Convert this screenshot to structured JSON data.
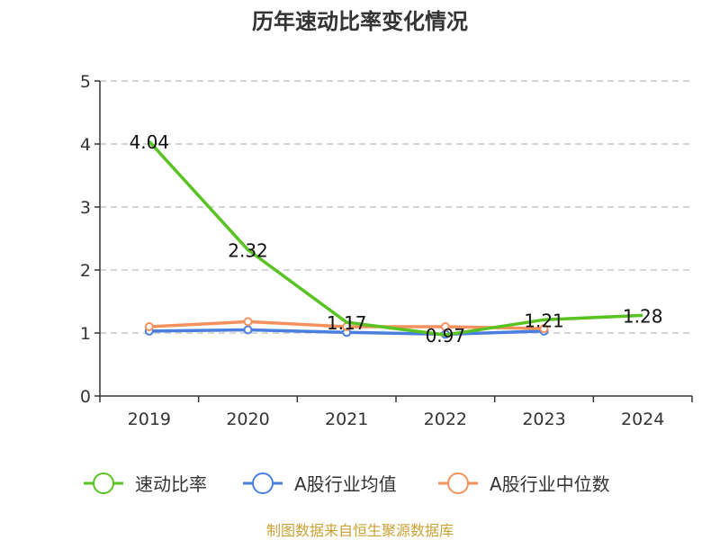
{
  "chart_data": {
    "type": "line",
    "title": "历年速动比率变化情况",
    "xlabel": "",
    "ylabel": "",
    "categories": [
      "2019",
      "2020",
      "2021",
      "2022",
      "2023",
      "2024"
    ],
    "ylim": [
      0,
      5
    ],
    "yticks": [
      "0",
      "1",
      "2",
      "3",
      "4",
      "5"
    ],
    "grid": "horizontal-dashed",
    "legend_position": "bottom",
    "series": [
      {
        "name": "速动比率",
        "color": "#58c322",
        "values": [
          4.04,
          2.32,
          1.17,
          0.97,
          1.21,
          1.28
        ],
        "labels": [
          "4.04",
          "2.32",
          "1.17",
          "0.97",
          "1.21",
          "1.28"
        ],
        "markers": false
      },
      {
        "name": "A股行业均值",
        "color": "#4a7fe0",
        "values": [
          1.03,
          1.05,
          1.01,
          0.98,
          1.03,
          null
        ],
        "markers": true
      },
      {
        "name": "A股行业中位数",
        "color": "#f5915e",
        "values": [
          1.1,
          1.18,
          1.1,
          1.1,
          1.07,
          null
        ],
        "markers": true
      }
    ]
  },
  "source_text": "制图数据来自恒生聚源数据库",
  "colors": {
    "axis": "#333333",
    "grid": "#c8c8c8",
    "source": "#c9a235"
  }
}
